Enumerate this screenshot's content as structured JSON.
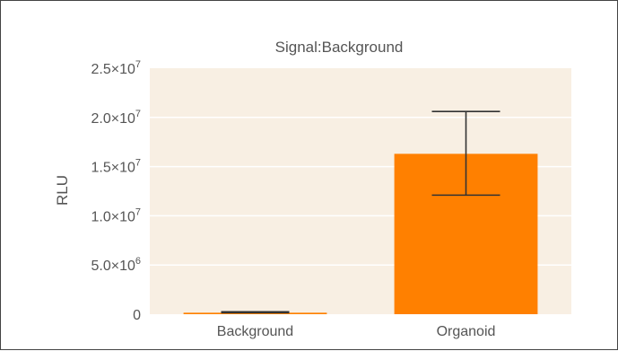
{
  "chart_data": {
    "type": "bar",
    "title": "Signal:Background",
    "xlabel": "",
    "ylabel": "RLU",
    "categories": [
      "Background",
      "Organoid"
    ],
    "values": [
      150000,
      16300000
    ],
    "error_low": [
      150000,
      12100000
    ],
    "error_high": [
      250000,
      20600000
    ],
    "ylim": [
      0,
      25000000
    ],
    "yticks": [
      0,
      5000000,
      10000000,
      15000000,
      20000000,
      25000000
    ],
    "ytick_labels": [
      {
        "mantissa": "0",
        "exp": ""
      },
      {
        "mantissa": "5.0×10",
        "exp": "6"
      },
      {
        "mantissa": "1.0×10",
        "exp": "7"
      },
      {
        "mantissa": "1.5×10",
        "exp": "7"
      },
      {
        "mantissa": "2.0×10",
        "exp": "7"
      },
      {
        "mantissa": "2.5×10",
        "exp": "7"
      }
    ],
    "grid": true,
    "colors": {
      "bar": "#ff8000",
      "plot_bg": "#f8efe3",
      "grid": "#ffffff",
      "error": "#333333"
    }
  }
}
